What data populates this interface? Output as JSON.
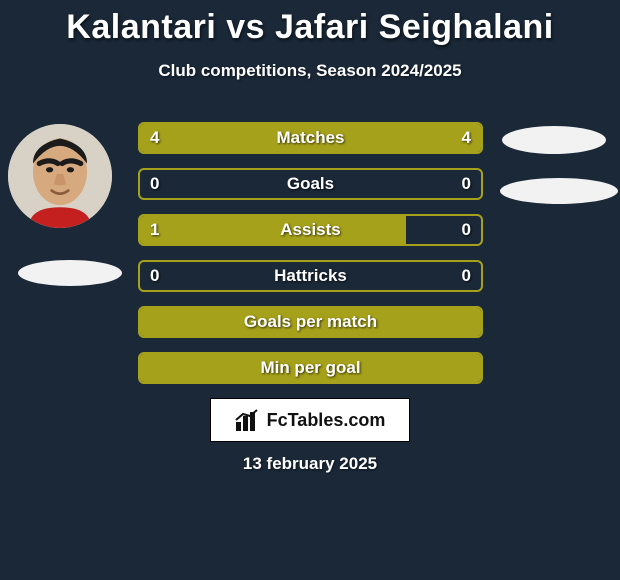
{
  "title": "Kalantari vs Jafari Seighalani",
  "subtitle": "Club competitions, Season 2024/2025",
  "colors": {
    "background": "#1a2838",
    "bar_fill": "#a6a11a",
    "bar_border": "#a6a11a",
    "text": "#ffffff",
    "badge_bg": "#ffffff",
    "badge_text": "#111111"
  },
  "bars": [
    {
      "label": "Matches",
      "left_val": "4",
      "right_val": "4",
      "left_pct": 50,
      "right_pct": 50
    },
    {
      "label": "Goals",
      "left_val": "0",
      "right_val": "0",
      "left_pct": 0,
      "right_pct": 0
    },
    {
      "label": "Assists",
      "left_val": "1",
      "right_val": "0",
      "left_pct": 78,
      "right_pct": 0
    },
    {
      "label": "Hattricks",
      "left_val": "0",
      "right_val": "0",
      "left_pct": 0,
      "right_pct": 0
    },
    {
      "label": "Goals per match",
      "left_val": "",
      "right_val": "",
      "left_pct": 100,
      "right_pct": 0
    },
    {
      "label": "Min per goal",
      "left_val": "",
      "right_val": "",
      "left_pct": 100,
      "right_pct": 0
    }
  ],
  "badge_text": "FcTables.com",
  "date": "13 february 2025",
  "fontsize": {
    "title": 34,
    "subtitle": 17,
    "bar_label": 17,
    "badge": 18,
    "date": 17
  }
}
